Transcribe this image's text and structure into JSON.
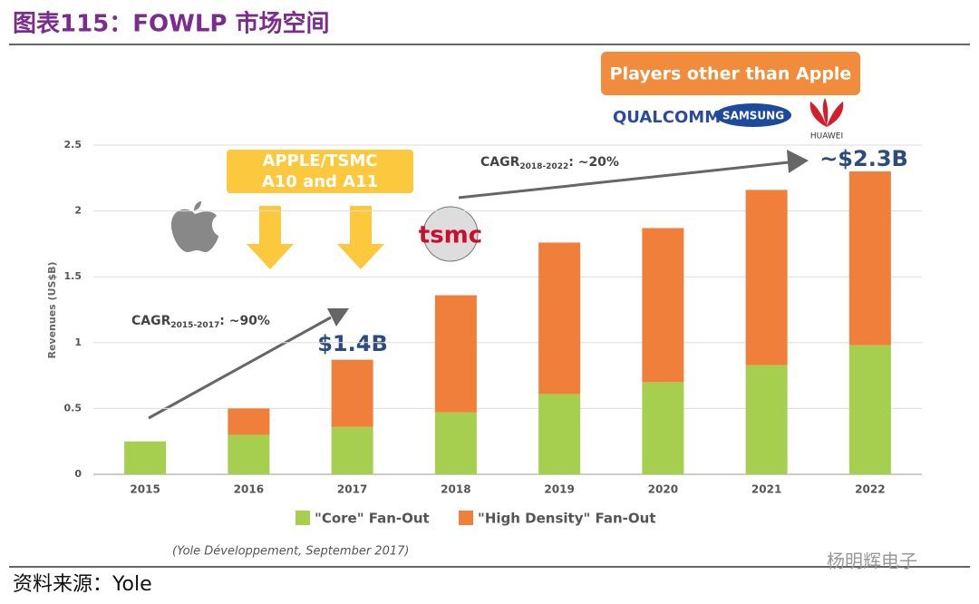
{
  "chart_data": {
    "type": "stacked_bar",
    "title": "图表115：FOWLP 市场空间",
    "y_label": "Revenues (US$B)",
    "categories": [
      "2015",
      "2016",
      "2017",
      "2018",
      "2019",
      "2020",
      "2021",
      "2022"
    ],
    "series": [
      {
        "name": "\"Core\" Fan-Out",
        "color": "#a6cf4f",
        "values": [
          0.25,
          0.3,
          0.36,
          0.47,
          0.61,
          0.7,
          0.83,
          0.98
        ]
      },
      {
        "name": "\"High Density\" Fan-Out",
        "color": "#f07f3c",
        "values": [
          0,
          0.2,
          0.51,
          0.89,
          1.15,
          1.17,
          1.33,
          1.32
        ]
      }
    ],
    "ylim": [
      0,
      2.5
    ],
    "yticks": [
      0,
      0.5,
      1,
      1.5,
      2,
      2.5
    ],
    "grid": true,
    "annotations": {
      "apple_box": [
        "APPLE/TSMC",
        "A10 and A11"
      ],
      "players_box": "Players other than Apple",
      "cagr1": {
        "label": "CAGR",
        "sub": "2015-2017",
        "rest": ": ~90%"
      },
      "cagr2": {
        "label": "CAGR",
        "sub": "2018-2022",
        "rest": ": ~20%"
      },
      "value1": "$1.4B",
      "value2": "~$2.3B",
      "logos": [
        "QUALCOMM",
        "SAMSUNG",
        "HUAWEI",
        "tsmc"
      ]
    },
    "source_note": "(Yole Développement, September 2017)",
    "footer": "资料来源：Yole",
    "watermark": "杨明辉电子"
  }
}
